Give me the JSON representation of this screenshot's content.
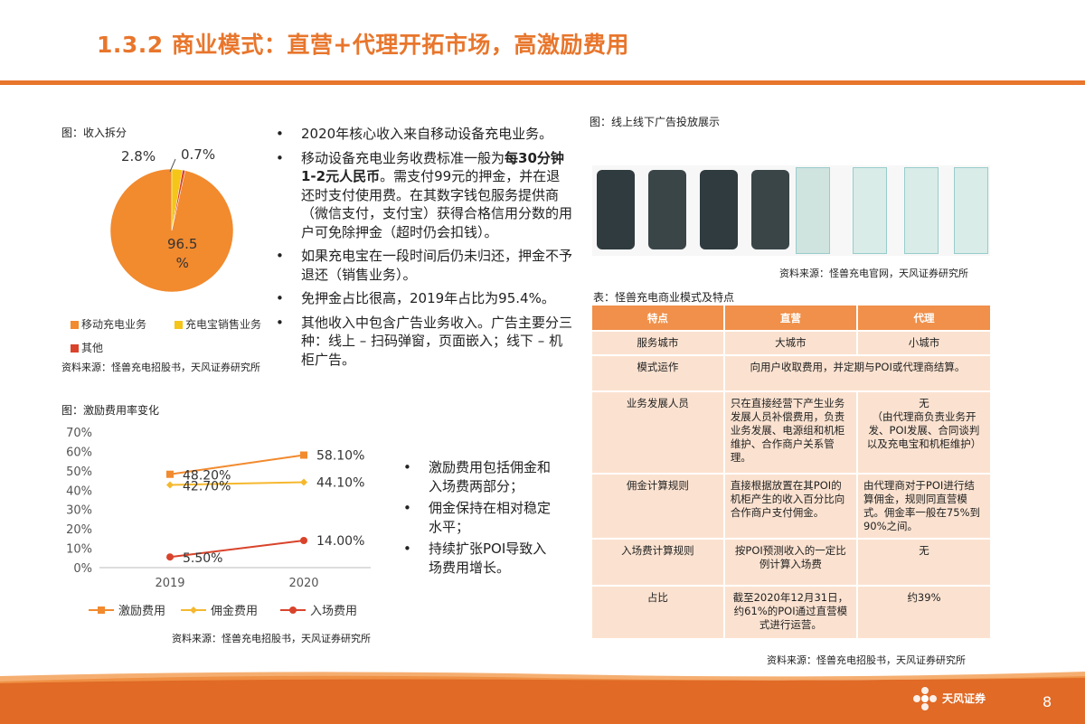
{
  "title": "1.3.2 商业模式：直营+代理开拓市场，高激励费用",
  "pie_section": {
    "caption": "图：收入拆分",
    "labels": {
      "main": "96.5\n%",
      "main_line1": "96.5",
      "main_line2": "%",
      "small1": "2.8%",
      "small2": "0.7%"
    },
    "legend": [
      "移动充电业务",
      "充电宝销售业务",
      "其他"
    ],
    "source": "资料来源：怪兽充电招股书，天风证券研究所"
  },
  "pie_chart": {
    "type": "pie",
    "slices": [
      {
        "name": "移动充电业务",
        "value": 96.5,
        "color": "#f28a2e"
      },
      {
        "name": "充电宝销售业务",
        "value": 2.8,
        "color": "#f5c518"
      },
      {
        "name": "其他",
        "value": 0.7,
        "color": "#d9432b"
      }
    ]
  },
  "bullets_top": [
    {
      "parts": [
        {
          "t": "2020年核心收入来自移动设备充电业务。",
          "b": false
        }
      ]
    },
    {
      "parts": [
        {
          "t": "移动设备充电业务收费标准一般为",
          "b": false
        },
        {
          "t": "每30分钟1-2元人民币",
          "b": true
        },
        {
          "t": "。需支付99元的押金，并在退还时支付使用费。在其数字钱包服务提供商（微信支付，支付宝）获得合格信用分数的用户可免除押金（超时仍会扣钱）。",
          "b": false
        }
      ]
    },
    {
      "parts": [
        {
          "t": "如果充电宝在一段时间后仍未归还，押金不予退还（销售业务）。",
          "b": false
        }
      ]
    },
    {
      "parts": [
        {
          "t": "免押金占比很高，2019年占比为95.4%。",
          "b": false
        }
      ]
    },
    {
      "parts": [
        {
          "t": "其他收入中包含广告业务收入。广告主要分三种：线上 – 扫码弹窗，页面嵌入；线下 – 机柜广告。",
          "b": false
        }
      ]
    }
  ],
  "line_section": {
    "caption": "图：激励费用率变化",
    "source": "资料来源：怪兽充电招股书，天风证券研究所"
  },
  "chart_data": {
    "type": "line",
    "x": [
      "2019",
      "2020"
    ],
    "ylim": [
      0,
      70
    ],
    "yticks": [
      "0%",
      "10%",
      "20%",
      "30%",
      "40%",
      "50%",
      "60%",
      "70%"
    ],
    "series": [
      {
        "name": "激励费用",
        "values": [
          48.2,
          58.1
        ],
        "labels": [
          "48.20%",
          "58.10%"
        ],
        "color": "#f28a2e",
        "marker": "square"
      },
      {
        "name": "佣金费用",
        "values": [
          42.7,
          44.1
        ],
        "labels": [
          "42.70%",
          "44.10%"
        ],
        "color": "#f5b82e",
        "marker": "diamond"
      },
      {
        "name": "入场费用",
        "values": [
          5.5,
          14.0
        ],
        "labels": [
          "5.50%",
          "14.00%"
        ],
        "color": "#d9432b",
        "marker": "circle"
      }
    ],
    "legend_position": "bottom"
  },
  "bullets_bottom": [
    "激励费用包括佣金和入场费两部分；",
    "佣金保持在相对稳定水平；",
    "持续扩张POI导致入场费用增长。"
  ],
  "ad_section": {
    "caption": "图：线上线下广告投放展示",
    "source": "资料来源：怪兽充电官网，天风证券研究所"
  },
  "table_section": {
    "caption": "表：怪兽充电商业模式及特点",
    "headers": [
      "特点",
      "直营",
      "代理"
    ],
    "rows": [
      [
        "服务城市",
        "大城市",
        "小城市"
      ],
      [
        "模式运作",
        "向用户收取费用，并定期与POI或代理商结算。",
        ""
      ],
      [
        "业务发展人员",
        "只在直接经营下产生业务发展人员补偿费用，负责业务发展、电源组和机柜维护、合作商户关系管理。",
        "无\n（由代理商负责业务开发、POI发展、合同谈判以及充电宝和机柜维护）"
      ],
      [
        "佣金计算规则",
        "直接根据放置在其POI的机柜产生的收入百分比向合作商户支付佣金。",
        "由代理商对于POI进行结算佣金，规则同直营模式。佣金率一般在75%到90%之间。"
      ],
      [
        "入场费计算规则",
        "按POI预测收入的一定比例计算入场费",
        "无"
      ],
      [
        "占比",
        "截至2020年12月31日，约61%的POI通过直营模式进行运营。",
        "约39%"
      ]
    ],
    "source": "资料来源：怪兽充电招股书，天风证券研究所"
  },
  "footer": {
    "page": "8",
    "logo_text": "天风证券"
  }
}
